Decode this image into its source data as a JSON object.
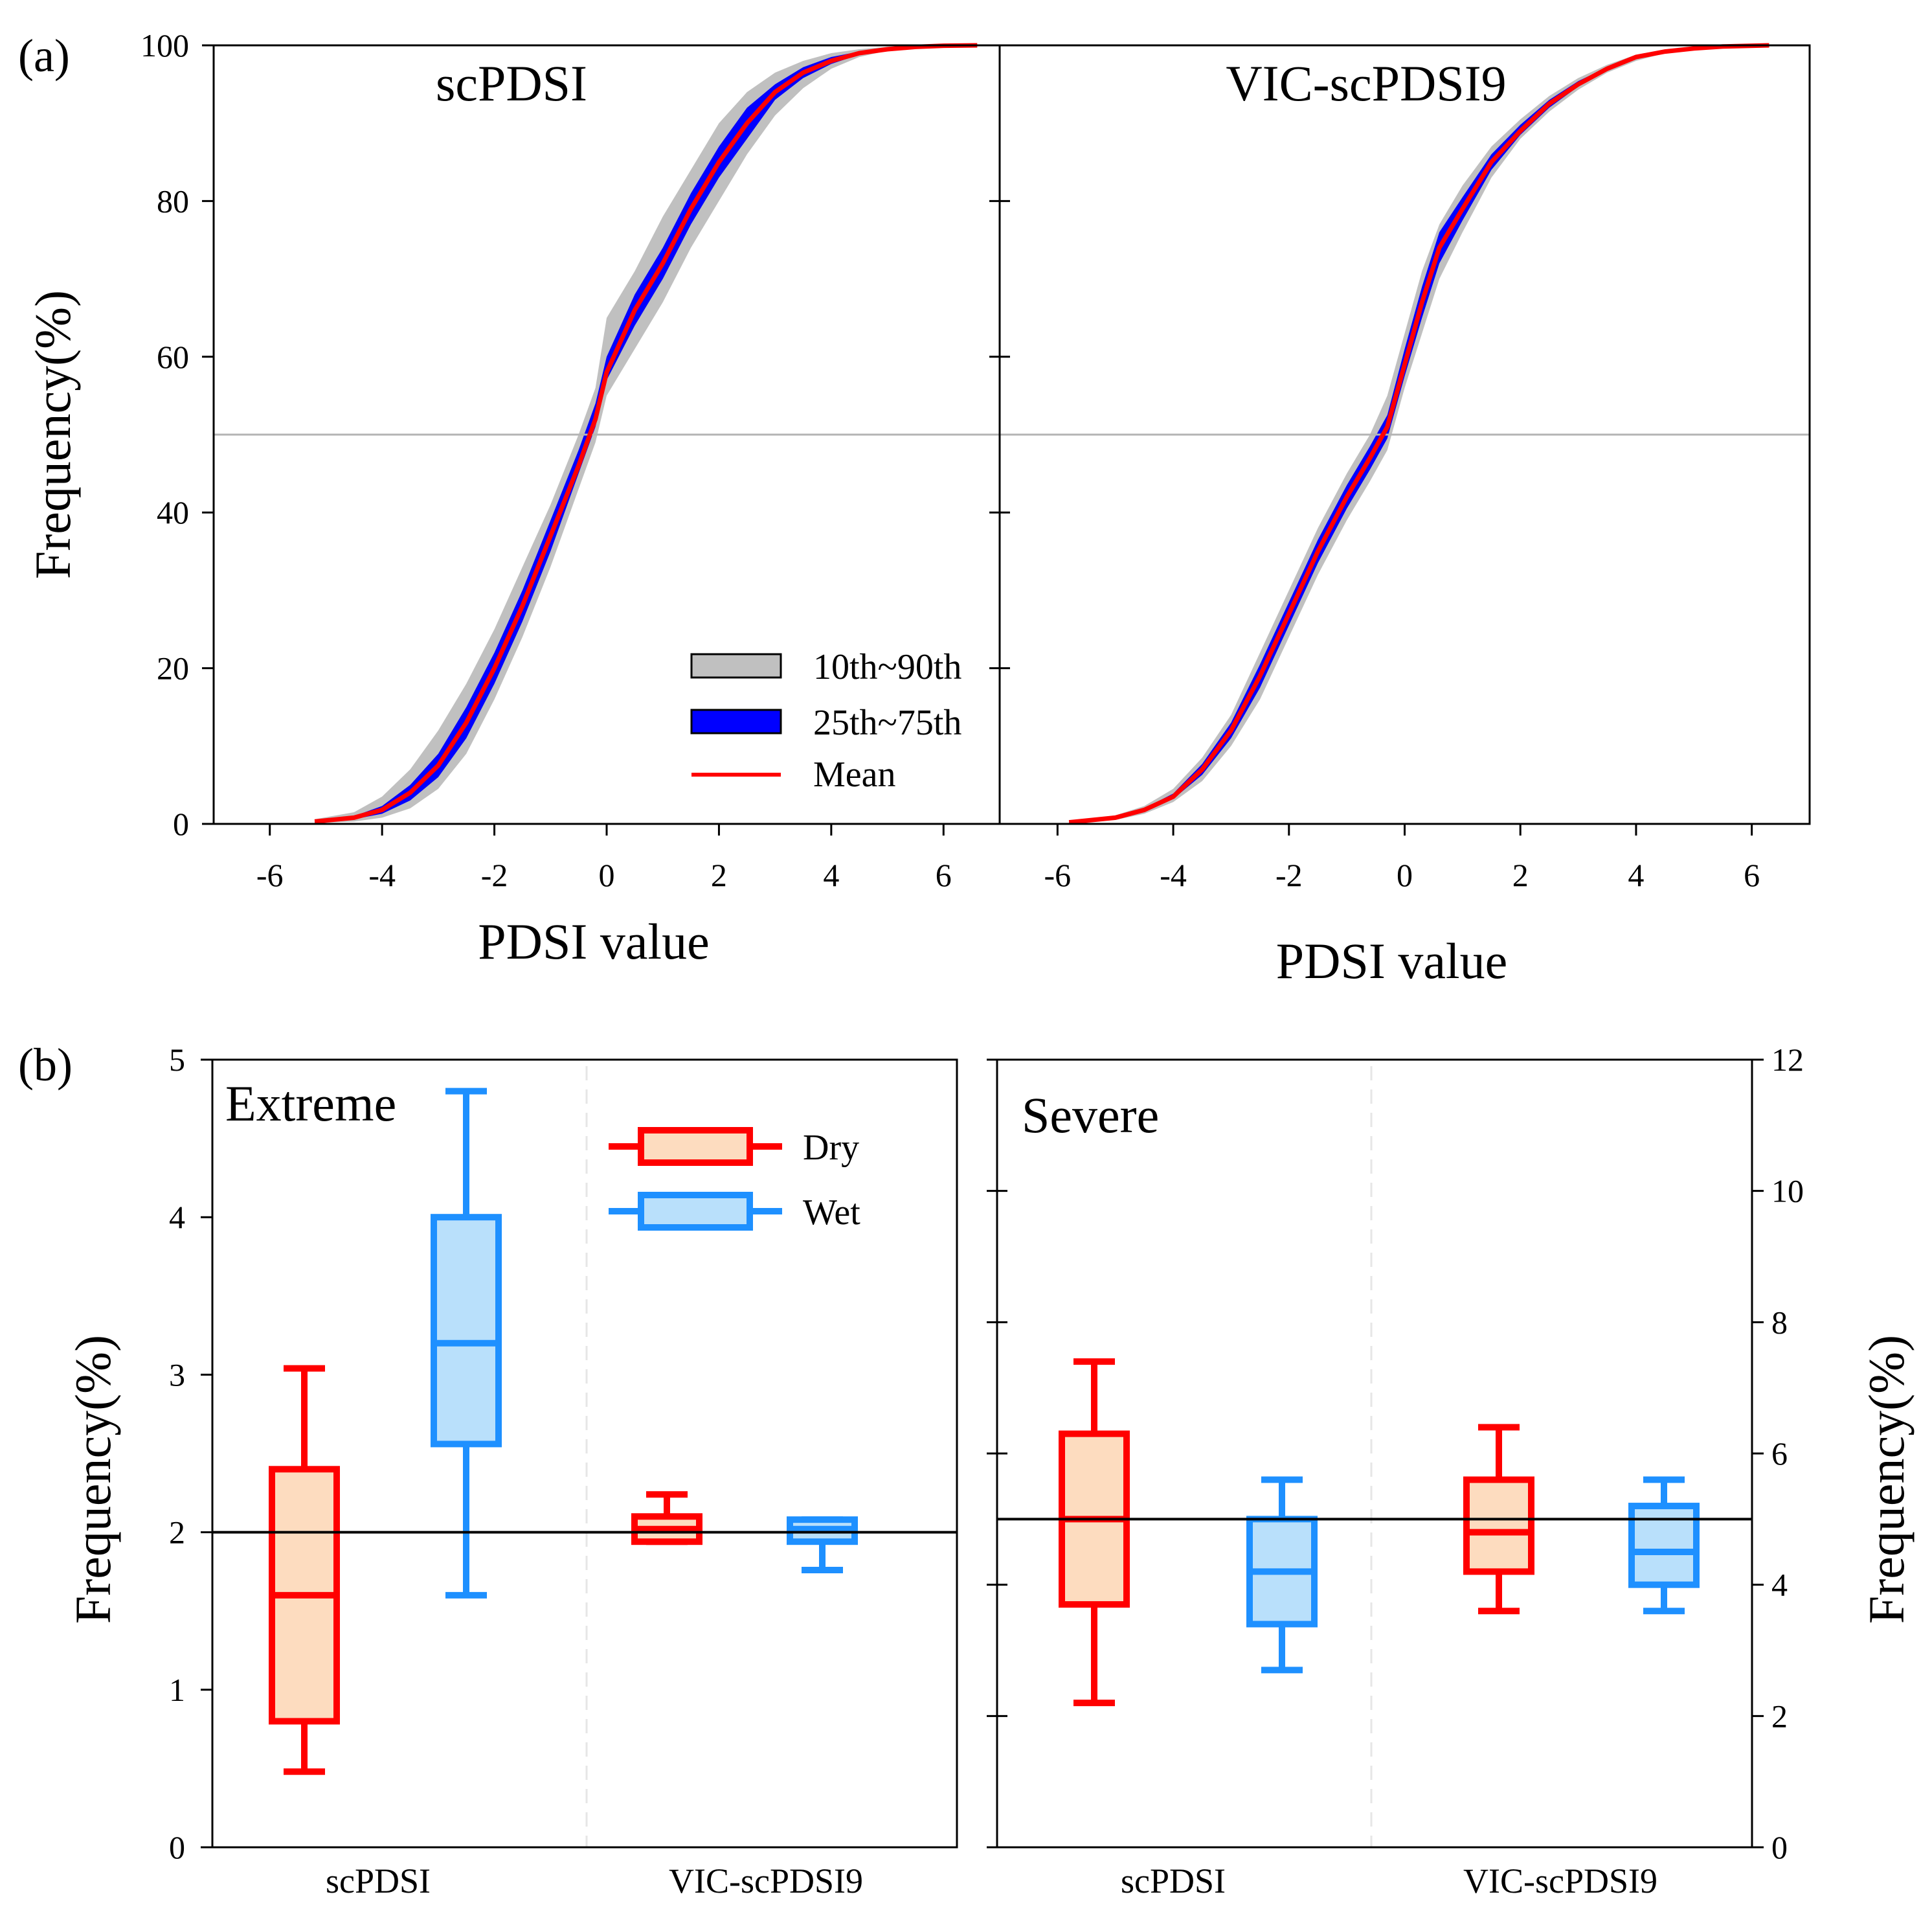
{
  "figure": {
    "panel_a_label": "(a)",
    "panel_b_label": "(b)"
  },
  "chart_data": [
    {
      "type": "line",
      "subtype": "cumulative distribution with percentile bands",
      "title": "scPDSI",
      "xlabel": "PDSI value",
      "ylabel": "Frequency(%)",
      "xlim": [
        -7,
        7
      ],
      "ylim": [
        0,
        100
      ],
      "xticks": [
        -6,
        -4,
        -2,
        0,
        2,
        4,
        6
      ],
      "yticks": [
        0,
        20,
        40,
        60,
        80,
        100
      ],
      "reference_line_y": 50,
      "x": [
        -5.2,
        -4.5,
        -4.0,
        -3.5,
        -3.0,
        -2.5,
        -2.0,
        -1.5,
        -1.0,
        -0.5,
        -0.2,
        0.0,
        0.5,
        1.0,
        1.5,
        2.0,
        2.5,
        3.0,
        3.5,
        4.0,
        4.5,
        5.0,
        5.5,
        6.0,
        6.6
      ],
      "series": [
        {
          "name": "Mean",
          "color": "#ff0000",
          "values": [
            0.3,
            0.8,
            1.8,
            4.0,
            7.5,
            13,
            20,
            28,
            37,
            46,
            52,
            58,
            66,
            72,
            79,
            85,
            90,
            94,
            96.5,
            98,
            99,
            99.5,
            99.8,
            99.95,
            100
          ]
        },
        {
          "name": "10th~90th",
          "color": "#c0c0c0",
          "lower": [
            0.1,
            0.3,
            0.8,
            2.0,
            4.5,
            9,
            16,
            24,
            33,
            43,
            49,
            55,
            61,
            67,
            74,
            80,
            86,
            91,
            94.5,
            97,
            98.5,
            99.3,
            99.7,
            99.9,
            100
          ],
          "upper": [
            0.6,
            1.5,
            3.5,
            7.0,
            12,
            18,
            25,
            33,
            41,
            50,
            56,
            65,
            71,
            78,
            84,
            90,
            94,
            96.5,
            98,
            99,
            99.5,
            99.8,
            99.95,
            100,
            100
          ]
        },
        {
          "name": "25th~75th",
          "color": "#0000ff",
          "lower": [
            0.2,
            0.6,
            1.3,
            3.0,
            6.0,
            11,
            18,
            26,
            35,
            45,
            51,
            57,
            64,
            70,
            77,
            83,
            88,
            93,
            95.8,
            97.6,
            98.8,
            99.4,
            99.75,
            99.93,
            100
          ],
          "upper": [
            0.4,
            1.0,
            2.3,
            5.0,
            9.0,
            15,
            22,
            30,
            39,
            48,
            54,
            60,
            68,
            74,
            81,
            87,
            92,
            95,
            97.2,
            98.5,
            99.2,
            99.6,
            99.85,
            99.97,
            100
          ]
        }
      ]
    },
    {
      "type": "line",
      "subtype": "cumulative distribution with percentile bands",
      "title": "VIC-scPDSI9",
      "xlabel": "PDSI value",
      "ylabel": "Frequency(%)",
      "xlim": [
        -7,
        7
      ],
      "ylim": [
        0,
        100
      ],
      "xticks": [
        -6,
        -4,
        -2,
        0,
        2,
        4,
        6
      ],
      "yticks": [
        0,
        20,
        40,
        60,
        80,
        100
      ],
      "reference_line_y": 50,
      "x": [
        -5.8,
        -5.0,
        -4.5,
        -4.0,
        -3.5,
        -3.0,
        -2.5,
        -2.0,
        -1.5,
        -1.0,
        -0.6,
        -0.3,
        0.0,
        0.3,
        0.6,
        1.0,
        1.5,
        2.0,
        2.5,
        3.0,
        3.5,
        4.0,
        4.5,
        5.0,
        5.5,
        6.3
      ],
      "series": [
        {
          "name": "Mean",
          "color": "#ff0000",
          "values": [
            0.2,
            0.8,
            1.8,
            3.5,
            7,
            12,
            19,
            27,
            35,
            42,
            47,
            51,
            59,
            67,
            74,
            79,
            85,
            89,
            92.5,
            95,
            97,
            98.5,
            99.2,
            99.6,
            99.85,
            100
          ]
        },
        {
          "name": "10th~90th",
          "color": "#c0c0c0",
          "lower": [
            0.1,
            0.5,
            1.3,
            2.8,
            5.5,
            10,
            16,
            24,
            32,
            39,
            44,
            48,
            56,
            63,
            70,
            76,
            83,
            88,
            91.5,
            94.3,
            96.5,
            98,
            99,
            99.5,
            99.8,
            100
          ],
          "upper": [
            0.3,
            1.1,
            2.3,
            4.5,
            8.5,
            14,
            22,
            30,
            38,
            45,
            50,
            55,
            63,
            71,
            77,
            82,
            87,
            90.5,
            93.5,
            95.8,
            97.5,
            98.8,
            99.4,
            99.7,
            99.9,
            100
          ]
        },
        {
          "name": "25th~75th",
          "color": "#0000ff",
          "lower": [
            0.15,
            0.7,
            1.6,
            3.2,
            6.3,
            11,
            17.5,
            25.5,
            33.5,
            40.5,
            45.5,
            49.5,
            57.5,
            65,
            72,
            77.5,
            84,
            88.5,
            92,
            94.7,
            96.8,
            98.3,
            99.1,
            99.55,
            99.83,
            100
          ],
          "upper": [
            0.25,
            0.9,
            2.0,
            3.9,
            7.7,
            13,
            20.5,
            28.5,
            36.5,
            43.5,
            48.5,
            52.5,
            61,
            69,
            76,
            80.5,
            86,
            89.8,
            93,
            95.4,
            97.2,
            98.7,
            99.3,
            99.65,
            99.88,
            100
          ]
        }
      ]
    },
    {
      "type": "box",
      "title": "Extreme",
      "ylabel": "Frequency(%)",
      "ylim": [
        0,
        5
      ],
      "yticks": [
        0,
        1,
        2,
        3,
        4,
        5
      ],
      "reference_line_y": 2,
      "categories": [
        "scPDSI",
        "VIC-scPDSI9"
      ],
      "series": [
        {
          "name": "Dry",
          "stroke": "#ff0000",
          "fill": "#fddcbf",
          "boxes": [
            {
              "category": "scPDSI",
              "min": 0.48,
              "q1": 0.8,
              "median": 1.6,
              "q3": 2.4,
              "max": 3.04
            },
            {
              "category": "VIC-scPDSI9",
              "min": 1.94,
              "q1": 1.94,
              "median": 2.02,
              "q3": 2.1,
              "max": 2.24
            }
          ]
        },
        {
          "name": "Wet",
          "stroke": "#1e90ff",
          "fill": "#b9e0fb",
          "boxes": [
            {
              "category": "scPDSI",
              "min": 1.6,
              "q1": 2.56,
              "median": 3.2,
              "q3": 4.0,
              "max": 4.8
            },
            {
              "category": "VIC-scPDSI9",
              "min": 1.76,
              "q1": 1.94,
              "median": 2.02,
              "q3": 2.08,
              "max": 2.08
            }
          ]
        }
      ],
      "legend": [
        "Dry",
        "Wet"
      ]
    },
    {
      "type": "box",
      "title": "Severe",
      "ylabel": "Frequency(%)",
      "ylim": [
        0,
        12
      ],
      "yticks": [
        0,
        2,
        4,
        6,
        8,
        10,
        12
      ],
      "reference_line_y": 5,
      "categories": [
        "scPDSI",
        "VIC-scPDSI9"
      ],
      "series": [
        {
          "name": "Dry",
          "stroke": "#ff0000",
          "fill": "#fddcbf",
          "boxes": [
            {
              "category": "scPDSI",
              "min": 2.2,
              "q1": 3.7,
              "median": 5.0,
              "q3": 6.3,
              "max": 7.4
            },
            {
              "category": "VIC-scPDSI9",
              "min": 3.6,
              "q1": 4.2,
              "median": 4.8,
              "q3": 5.6,
              "max": 6.4
            }
          ]
        },
        {
          "name": "Wet",
          "stroke": "#1e90ff",
          "fill": "#b9e0fb",
          "boxes": [
            {
              "category": "scPDSI",
              "min": 2.7,
              "q1": 3.4,
              "median": 4.2,
              "q3": 5.0,
              "max": 5.6
            },
            {
              "category": "VIC-scPDSI9",
              "min": 3.6,
              "q1": 4.0,
              "median": 4.5,
              "q3": 5.2,
              "max": 5.6
            }
          ]
        }
      ]
    }
  ]
}
